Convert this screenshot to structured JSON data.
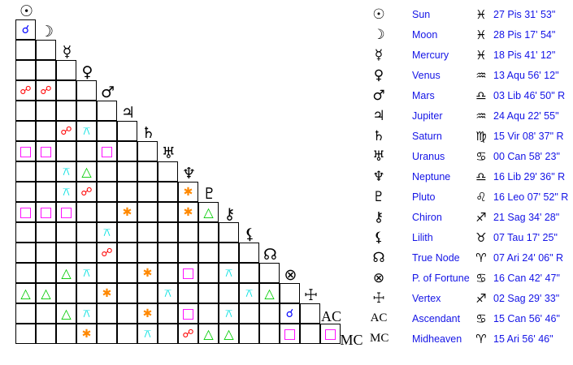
{
  "aspect_styles": {
    "conjunction": {
      "glyph": "☌",
      "color": "#0000ff"
    },
    "opposition": {
      "glyph": "☍",
      "color": "#ff0000"
    },
    "square": {
      "glyph": "□",
      "color": "#ff00ff"
    },
    "trine": {
      "glyph": "△",
      "color": "#00cc00"
    },
    "sextile": {
      "glyph": "✱",
      "color": "#ff8800"
    },
    "quincunx": {
      "glyph": "⚻",
      "color": "#00e0e0"
    }
  },
  "planets": [
    {
      "glyph": "☉",
      "name": "Sun",
      "sign_glyph": "♓",
      "position": "27 Pis 31' 53\""
    },
    {
      "glyph": "☽",
      "name": "Moon",
      "sign_glyph": "♓",
      "position": "28 Pis 17' 54\""
    },
    {
      "glyph": "☿",
      "name": "Mercury",
      "sign_glyph": "♓",
      "position": "18 Pis 41' 12\""
    },
    {
      "glyph": "♀",
      "name": "Venus",
      "sign_glyph": "♒",
      "position": "13 Aqu 56' 12\""
    },
    {
      "glyph": "♂",
      "name": "Mars",
      "sign_glyph": "♎",
      "position": "03 Lib 46' 50\" R"
    },
    {
      "glyph": "♃",
      "name": "Jupiter",
      "sign_glyph": "♒",
      "position": "24 Aqu 22' 55\""
    },
    {
      "glyph": "♄",
      "name": "Saturn",
      "sign_glyph": "♍",
      "position": "15 Vir 08' 37\" R"
    },
    {
      "glyph": "♅",
      "name": "Uranus",
      "sign_glyph": "♋",
      "position": "00 Can 58' 23\""
    },
    {
      "glyph": "♆",
      "name": "Neptune",
      "sign_glyph": "♎",
      "position": "16 Lib 29' 36\" R"
    },
    {
      "glyph": "♇",
      "name": "Pluto",
      "sign_glyph": "♌",
      "position": "16 Leo 07' 52\" R"
    },
    {
      "glyph": "⚷",
      "name": "Chiron",
      "sign_glyph": "♐",
      "position": "21 Sag 34' 28\""
    },
    {
      "glyph": "⚸",
      "name": "Lilith",
      "sign_glyph": "♉",
      "position": "07 Tau 17' 25\""
    },
    {
      "glyph": "☊",
      "name": "True Node",
      "sign_glyph": "♈",
      "position": "07 Ari 24' 06\" R"
    },
    {
      "glyph": "⊗",
      "name": "P. of Fortune",
      "sign_glyph": "♋",
      "position": "16 Can 42' 47\""
    },
    {
      "glyph": "☩",
      "name": "Vertex",
      "sign_glyph": "♐",
      "position": "02 Sag 29' 33\""
    },
    {
      "glyph": "AC",
      "name": "Ascendant",
      "sign_glyph": "♋",
      "position": "15 Can 56' 46\""
    },
    {
      "glyph": "MC",
      "name": "Midheaven",
      "sign_glyph": "♈",
      "position": "15 Ari 56' 46\""
    }
  ],
  "aspects": [
    [
      1,
      0,
      "conjunction"
    ],
    [
      4,
      0,
      "opposition"
    ],
    [
      4,
      1,
      "opposition"
    ],
    [
      6,
      2,
      "opposition"
    ],
    [
      6,
      3,
      "quincunx"
    ],
    [
      7,
      0,
      "square"
    ],
    [
      7,
      1,
      "square"
    ],
    [
      7,
      4,
      "square"
    ],
    [
      8,
      2,
      "quincunx"
    ],
    [
      8,
      3,
      "trine"
    ],
    [
      9,
      2,
      "quincunx"
    ],
    [
      9,
      3,
      "opposition"
    ],
    [
      9,
      8,
      "sextile"
    ],
    [
      10,
      0,
      "square"
    ],
    [
      10,
      1,
      "square"
    ],
    [
      10,
      2,
      "square"
    ],
    [
      10,
      5,
      "sextile"
    ],
    [
      10,
      8,
      "sextile"
    ],
    [
      10,
      9,
      "trine"
    ],
    [
      11,
      4,
      "quincunx"
    ],
    [
      12,
      4,
      "opposition"
    ],
    [
      13,
      2,
      "trine"
    ],
    [
      13,
      3,
      "quincunx"
    ],
    [
      13,
      6,
      "sextile"
    ],
    [
      13,
      8,
      "square"
    ],
    [
      13,
      10,
      "quincunx"
    ],
    [
      14,
      0,
      "trine"
    ],
    [
      14,
      1,
      "trine"
    ],
    [
      14,
      4,
      "sextile"
    ],
    [
      14,
      7,
      "quincunx"
    ],
    [
      14,
      11,
      "quincunx"
    ],
    [
      14,
      12,
      "trine"
    ],
    [
      15,
      2,
      "trine"
    ],
    [
      15,
      3,
      "quincunx"
    ],
    [
      15,
      6,
      "sextile"
    ],
    [
      15,
      8,
      "square"
    ],
    [
      15,
      10,
      "quincunx"
    ],
    [
      15,
      13,
      "conjunction"
    ],
    [
      16,
      3,
      "sextile"
    ],
    [
      16,
      6,
      "quincunx"
    ],
    [
      16,
      8,
      "opposition"
    ],
    [
      16,
      9,
      "trine"
    ],
    [
      16,
      10,
      "trine"
    ],
    [
      16,
      13,
      "square"
    ],
    [
      16,
      15,
      "square"
    ]
  ]
}
